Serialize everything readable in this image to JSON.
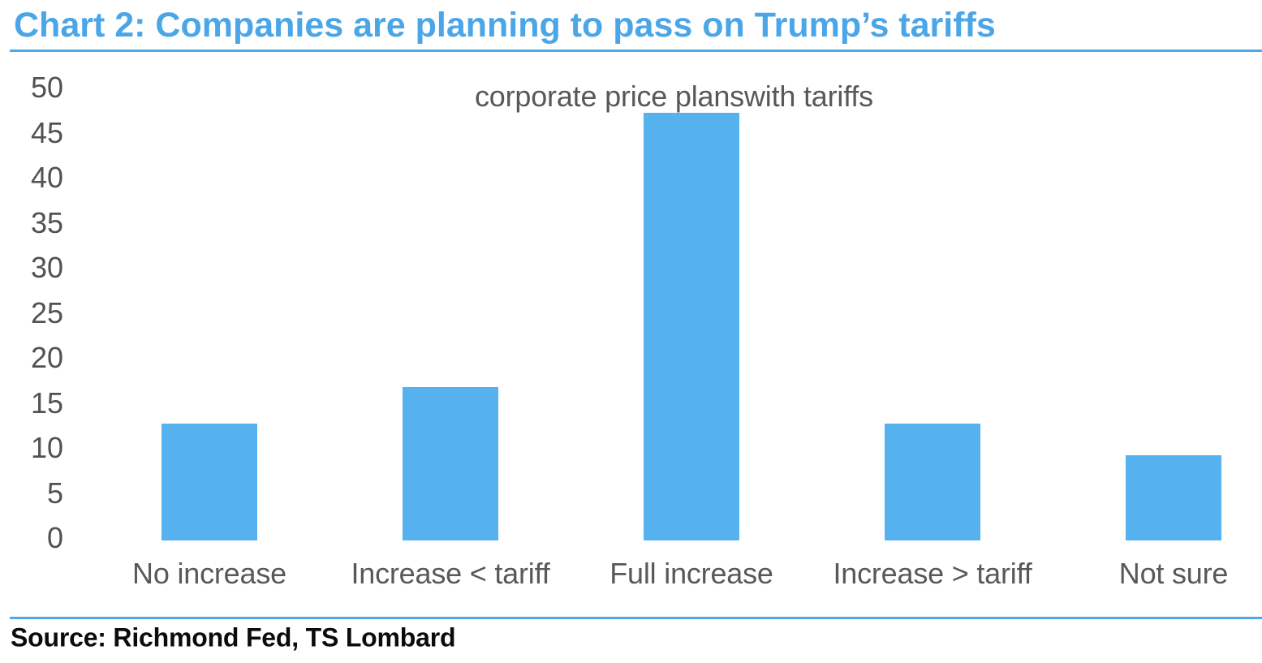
{
  "colors": {
    "accent_blue": "#4EA9E9",
    "bar_blue": "#56B1EF",
    "text_gray": "#58585A"
  },
  "chart_data": {
    "type": "bar",
    "title": "Chart 2: Companies are planning to pass on Trump’s tariffs",
    "annotation": "corporate price planswith tariffs",
    "categories": [
      "No increase",
      "Increase < tariff",
      "Full increase",
      "Increase > tariff",
      "Not sure"
    ],
    "values": [
      13,
      17,
      47.5,
      13,
      9.5
    ],
    "ylim": [
      0,
      50
    ],
    "ytick_step": 5,
    "grid": false,
    "legend": false,
    "source": "Source: Richmond Fed, TS Lombard"
  }
}
